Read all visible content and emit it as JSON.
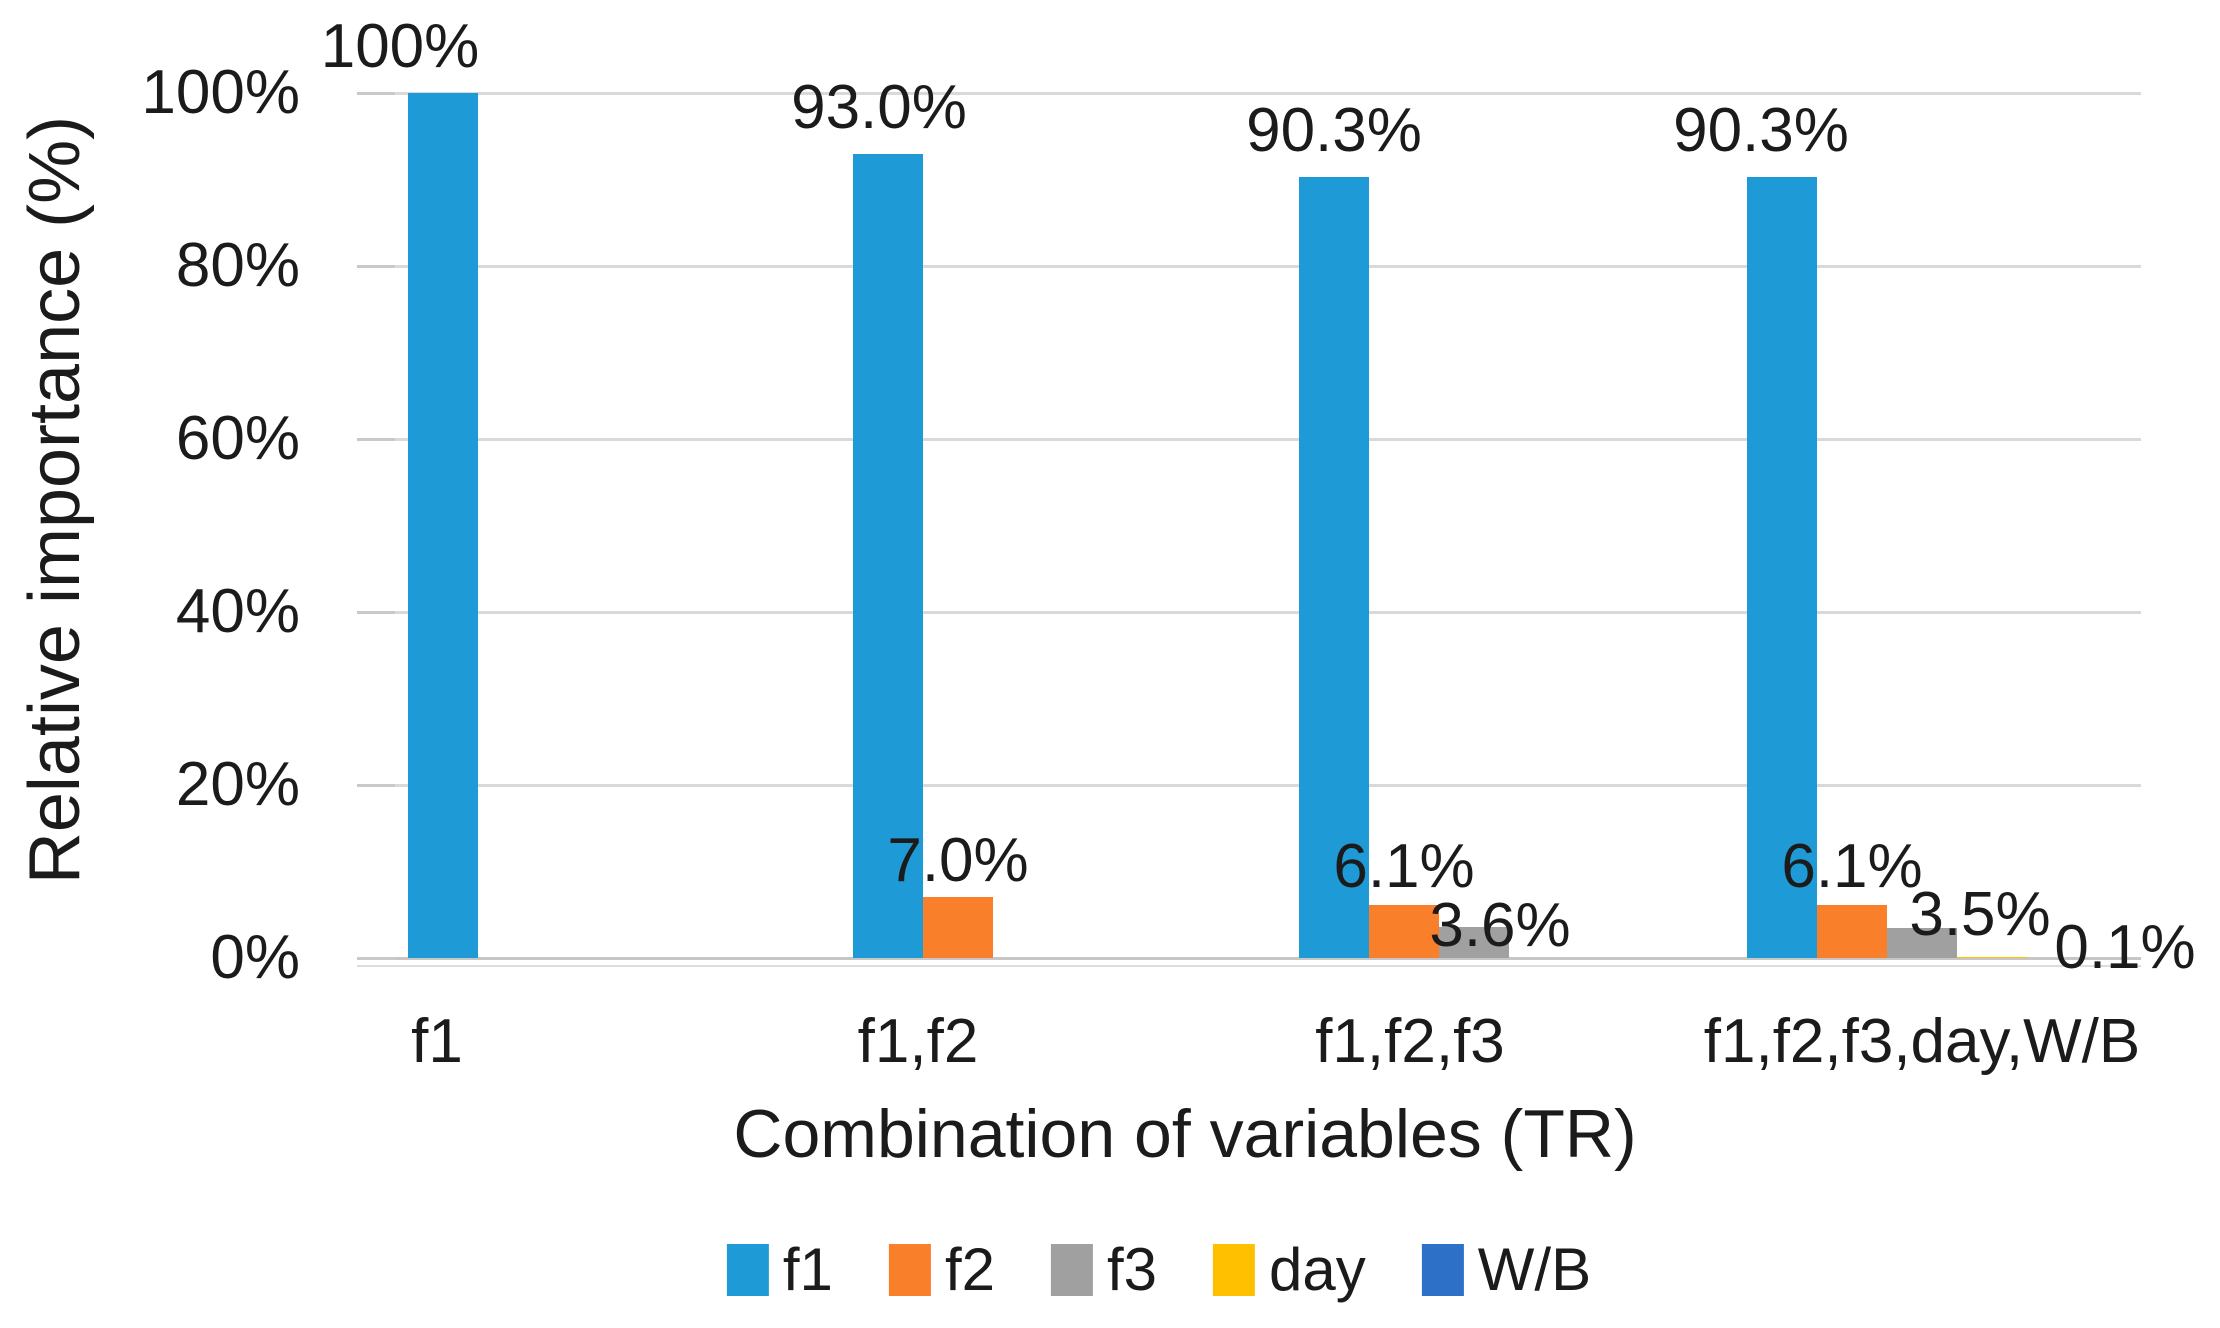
{
  "chart_data": {
    "type": "bar",
    "title": "",
    "xlabel": "Combination of variables (TR)",
    "ylabel": "Relative importance (%)",
    "categories": [
      "f1",
      "f1,f2",
      "f1,f2,f3",
      "f1,f2,f3,day,W/B"
    ],
    "series": [
      {
        "name": "f1",
        "color": "#1E9BD7",
        "values": [
          100,
          93.0,
          90.3,
          90.3
        ],
        "data_labels": [
          "100%",
          "93.0%",
          "90.3%",
          "90.3%"
        ]
      },
      {
        "name": "f2",
        "color": "#F97F2B",
        "values": [
          0,
          7.0,
          6.1,
          6.1
        ],
        "data_labels": [
          "",
          "7.0%",
          "6.1%",
          "6.1%"
        ]
      },
      {
        "name": "f3",
        "color": "#A0A0A0",
        "values": [
          0,
          0,
          3.6,
          3.5
        ],
        "data_labels": [
          "",
          "",
          "3.6%",
          "3.5%"
        ]
      },
      {
        "name": "day",
        "color": "#FFC000",
        "values": [
          0,
          0,
          0,
          0.1
        ],
        "data_labels": [
          "",
          "",
          "",
          "0.1%"
        ]
      },
      {
        "name": "W/B",
        "color": "#2D70C8",
        "values": [
          0,
          0,
          0,
          0
        ],
        "data_labels": [
          "",
          "",
          "",
          ""
        ]
      }
    ],
    "y_axis": {
      "min": 0,
      "max": 100,
      "ticks": [
        {
          "label": "100%",
          "value": 100
        },
        {
          "label": "80%",
          "value": 80
        },
        {
          "label": "60%",
          "value": 60
        },
        {
          "label": "40%",
          "value": 40
        },
        {
          "label": "20%",
          "value": 20
        },
        {
          "label": "0%",
          "value": 0
        }
      ]
    },
    "grid": true,
    "legend_position": "bottom"
  }
}
